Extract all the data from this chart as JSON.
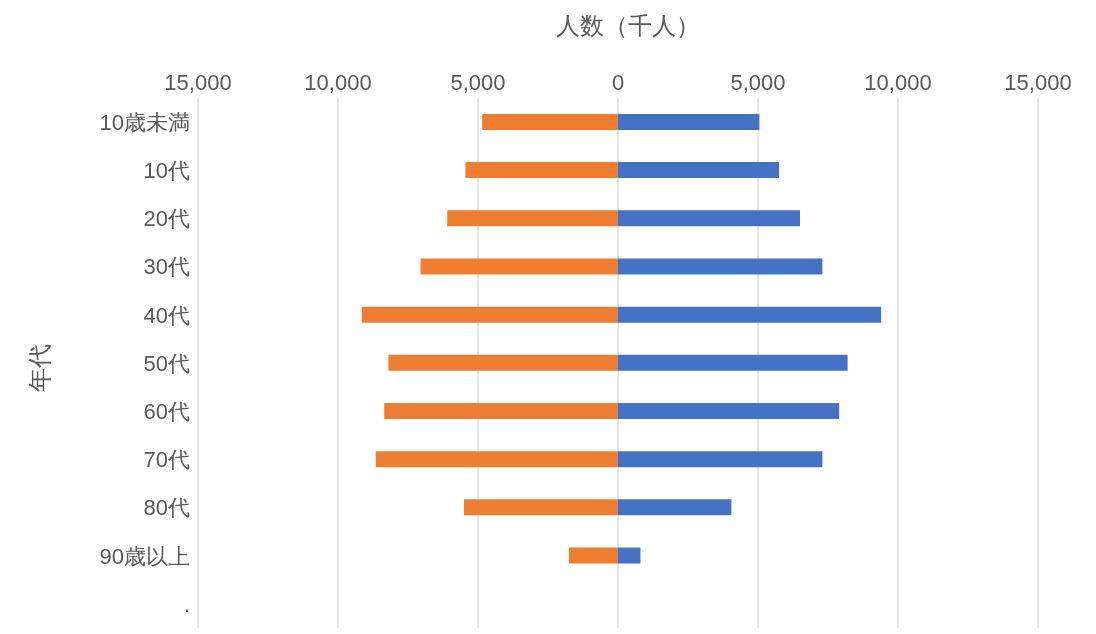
{
  "chart_data": {
    "type": "bar",
    "orientation": "horizontal",
    "stacked": true,
    "xlabel": "人数（千人）",
    "ylabel": "年代",
    "categories": [
      "10歳未満",
      "10代",
      "20代",
      "30代",
      "40代",
      "50代",
      "60代",
      "70代",
      "80代",
      "90歳以上",
      "."
    ],
    "series": [
      {
        "color": "#ed7d31",
        "values": [
          -4850,
          -5450,
          -6100,
          -7050,
          -9150,
          -8200,
          -8350,
          -8650,
          -5500,
          -1750,
          null
        ]
      },
      {
        "color": "#4472c4",
        "values": [
          5050,
          5750,
          6500,
          7300,
          9400,
          8200,
          7900,
          7300,
          4050,
          800,
          null
        ]
      }
    ],
    "xlim": [
      -15000,
      15000
    ],
    "xticks": [
      {
        "value": -15000,
        "label": "15,000"
      },
      {
        "value": -10000,
        "label": "10,000"
      },
      {
        "value": -5000,
        "label": "5,000"
      },
      0,
      {
        "value": 5000,
        "label": "5,000"
      },
      {
        "value": 10000,
        "label": "10,000"
      },
      {
        "value": 15000,
        "label": "15,000"
      }
    ],
    "grid": "x",
    "legend": false
  }
}
